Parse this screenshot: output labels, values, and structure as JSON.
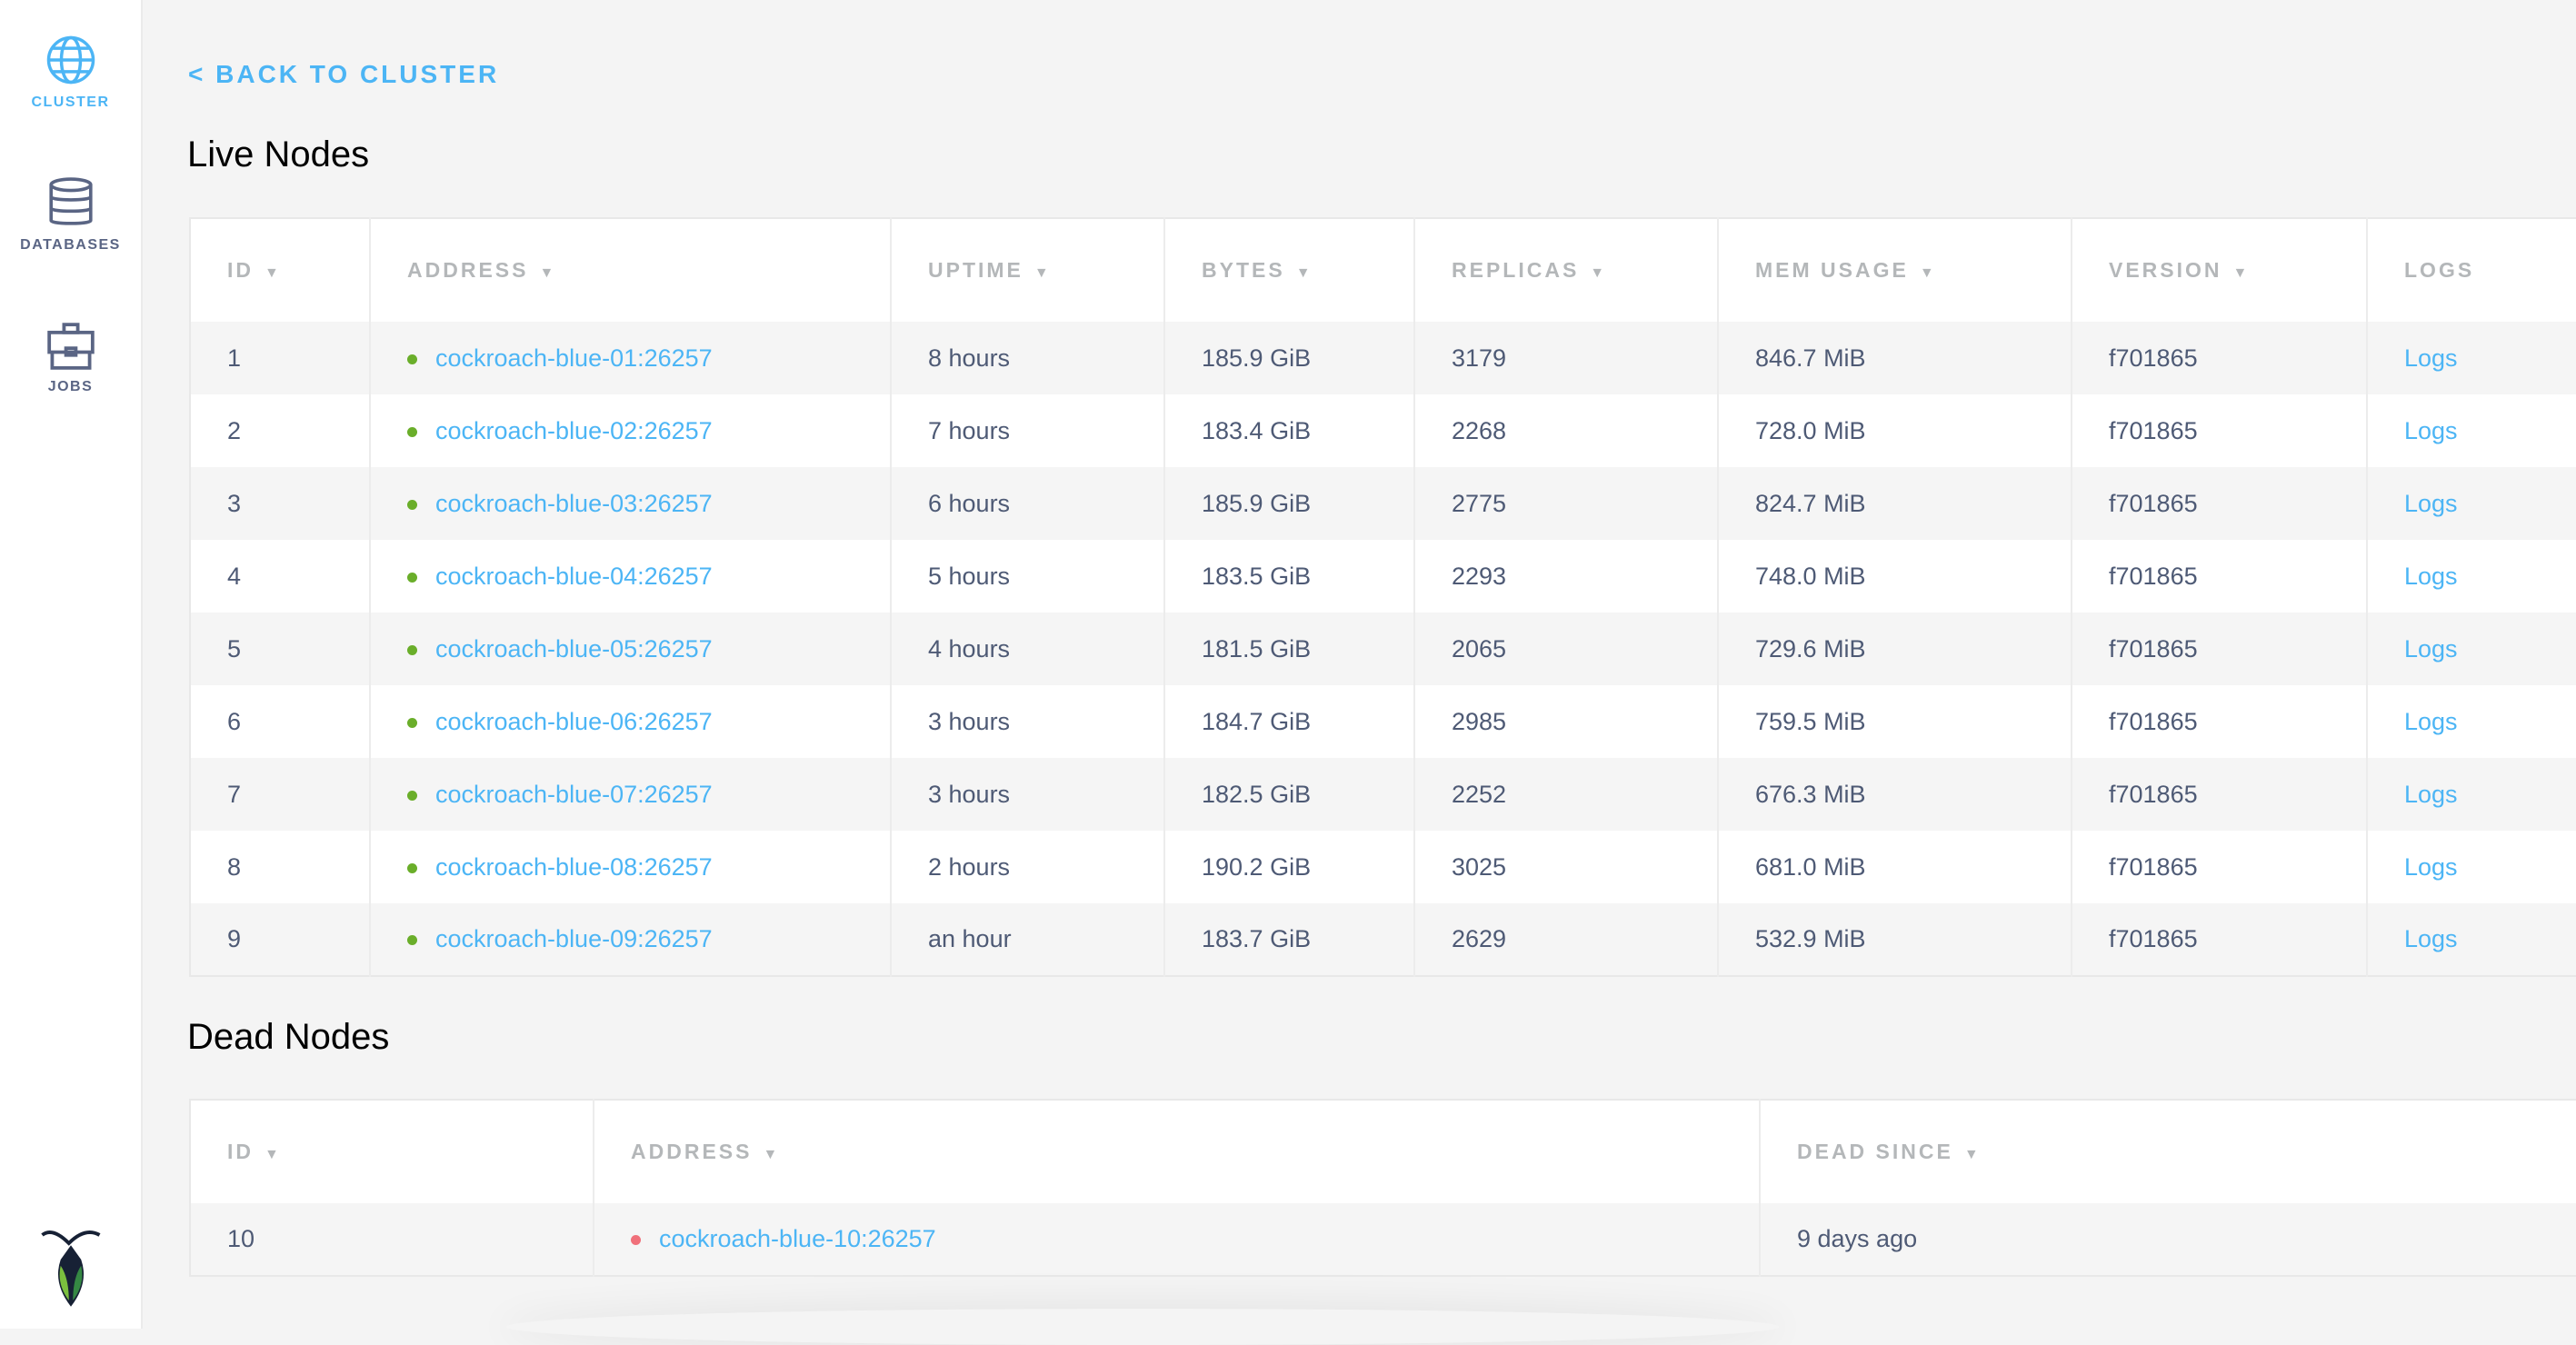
{
  "sidebar": {
    "items": [
      {
        "label": "CLUSTER",
        "icon": "globe-icon",
        "active": true
      },
      {
        "label": "DATABASES",
        "icon": "database-icon",
        "active": false
      },
      {
        "label": "JOBS",
        "icon": "briefcase-icon",
        "active": false
      }
    ],
    "logo": "cockroachdb-logo"
  },
  "back_link": "< BACK TO CLUSTER",
  "live": {
    "title": "Live Nodes",
    "columns": [
      "ID",
      "ADDRESS",
      "UPTIME",
      "BYTES",
      "REPLICAS",
      "MEM USAGE",
      "VERSION",
      "LOGS"
    ],
    "sort_arrow": "▼",
    "rows": [
      {
        "id": "1",
        "address": "cockroach-blue-01:26257",
        "uptime": "8 hours",
        "bytes": "185.9 GiB",
        "replicas": "3179",
        "mem": "846.7 MiB",
        "version": "f701865",
        "logs": "Logs"
      },
      {
        "id": "2",
        "address": "cockroach-blue-02:26257",
        "uptime": "7 hours",
        "bytes": "183.4 GiB",
        "replicas": "2268",
        "mem": "728.0 MiB",
        "version": "f701865",
        "logs": "Logs"
      },
      {
        "id": "3",
        "address": "cockroach-blue-03:26257",
        "uptime": "6 hours",
        "bytes": "185.9 GiB",
        "replicas": "2775",
        "mem": "824.7 MiB",
        "version": "f701865",
        "logs": "Logs"
      },
      {
        "id": "4",
        "address": "cockroach-blue-04:26257",
        "uptime": "5 hours",
        "bytes": "183.5 GiB",
        "replicas": "2293",
        "mem": "748.0 MiB",
        "version": "f701865",
        "logs": "Logs"
      },
      {
        "id": "5",
        "address": "cockroach-blue-05:26257",
        "uptime": "4 hours",
        "bytes": "181.5 GiB",
        "replicas": "2065",
        "mem": "729.6 MiB",
        "version": "f701865",
        "logs": "Logs"
      },
      {
        "id": "6",
        "address": "cockroach-blue-06:26257",
        "uptime": "3 hours",
        "bytes": "184.7 GiB",
        "replicas": "2985",
        "mem": "759.5 MiB",
        "version": "f701865",
        "logs": "Logs"
      },
      {
        "id": "7",
        "address": "cockroach-blue-07:26257",
        "uptime": "3 hours",
        "bytes": "182.5 GiB",
        "replicas": "2252",
        "mem": "676.3 MiB",
        "version": "f701865",
        "logs": "Logs"
      },
      {
        "id": "8",
        "address": "cockroach-blue-08:26257",
        "uptime": "2 hours",
        "bytes": "190.2 GiB",
        "replicas": "3025",
        "mem": "681.0 MiB",
        "version": "f701865",
        "logs": "Logs"
      },
      {
        "id": "9",
        "address": "cockroach-blue-09:26257",
        "uptime": "an hour",
        "bytes": "183.7 GiB",
        "replicas": "2629",
        "mem": "532.9 MiB",
        "version": "f701865",
        "logs": "Logs"
      }
    ]
  },
  "dead": {
    "title": "Dead Nodes",
    "columns": [
      "ID",
      "ADDRESS",
      "DEAD SINCE"
    ],
    "rows": [
      {
        "id": "10",
        "address": "cockroach-blue-10:26257",
        "dead_since": "9 days ago"
      }
    ]
  },
  "colors": {
    "accent": "#4cb5f5",
    "live_dot": "#6aae2a",
    "dead_dot": "#f0707a",
    "text": "#4e5a75"
  }
}
